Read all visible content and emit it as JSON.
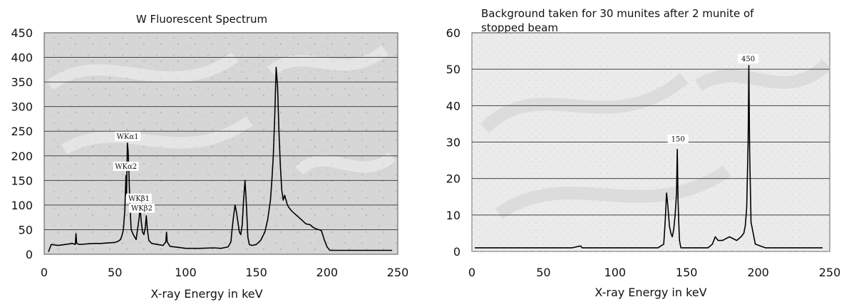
{
  "chart_data": [
    {
      "type": "line",
      "title": "W Fluorescent Spectrum",
      "xlabel": "X-ray Energy in keV",
      "ylabel": "",
      "xlim": [
        0,
        250
      ],
      "ylim": [
        0,
        450
      ],
      "xticks": [
        "0",
        "50",
        "100",
        "150",
        "200",
        "250"
      ],
      "yticks": [
        "0",
        "50",
        "100",
        "150",
        "200",
        "250",
        "300",
        "350",
        "400",
        "450"
      ],
      "grid": "horizontal",
      "background": "#d6d6d6",
      "line_color": "#000000",
      "annotations": [
        {
          "text": "WKα1",
          "x": 59,
          "y": 226
        },
        {
          "text": "WKα2",
          "x": 57.8,
          "y": 165
        },
        {
          "text": "WKβ1",
          "x": 67,
          "y": 100
        },
        {
          "text": "WKβ2",
          "x": 69,
          "y": 80
        }
      ],
      "series": [
        {
          "x": [
            3,
            5,
            10,
            15,
            20,
            22,
            22.5,
            23,
            25,
            30,
            35,
            40,
            45,
            50,
            52,
            54,
            55,
            56,
            57,
            57.8,
            58.2,
            58.8,
            59.3,
            59.8,
            60.5,
            61.5,
            63,
            65,
            66.5,
            67.2,
            67.8,
            68.5,
            69.5,
            70.5,
            71.5,
            72.2,
            73,
            74,
            76,
            80,
            84,
            86,
            86.5,
            87,
            89,
            95,
            100,
            110,
            120,
            125,
            130,
            132,
            133,
            134,
            135,
            136,
            137,
            138,
            139,
            140,
            141,
            142,
            143,
            144,
            145,
            147,
            150,
            153,
            156,
            158,
            160,
            161,
            162,
            163,
            164,
            165,
            166,
            167,
            168,
            169,
            170,
            171,
            172,
            173,
            175,
            178,
            182,
            185,
            188,
            190,
            192,
            194,
            196,
            198,
            200,
            202,
            205,
            210,
            220,
            230,
            240,
            246
          ],
          "y": [
            5,
            20,
            18,
            20,
            22,
            20,
            42,
            22,
            20,
            21,
            22,
            22,
            23,
            24,
            26,
            30,
            38,
            50,
            90,
            160,
            120,
            226,
            210,
            180,
            110,
            50,
            40,
            30,
            60,
            75,
            97,
            70,
            45,
            40,
            55,
            78,
            50,
            28,
            22,
            20,
            18,
            25,
            45,
            25,
            16,
            14,
            12,
            12,
            13,
            12,
            15,
            25,
            55,
            80,
            100,
            85,
            65,
            45,
            40,
            60,
            110,
            150,
            100,
            35,
            20,
            18,
            20,
            28,
            45,
            70,
            110,
            150,
            200,
            280,
            380,
            340,
            250,
            180,
            130,
            110,
            120,
            110,
            100,
            95,
            88,
            80,
            70,
            62,
            60,
            55,
            52,
            50,
            48,
            30,
            15,
            8,
            8,
            8,
            8,
            8,
            8,
            8
          ]
        }
      ]
    },
    {
      "type": "line",
      "title": "Background taken for 30 munites after 2 munite of stopped beam",
      "title_lines": [
        "Background taken for 30 munites after 2 munite of",
        "stopped beam"
      ],
      "xlabel": "X-ray Energy in keV",
      "ylabel": "",
      "xlim": [
        0,
        250
      ],
      "ylim": [
        0,
        60
      ],
      "xticks": [
        "0",
        "50",
        "100",
        "150",
        "200",
        "250"
      ],
      "yticks": [
        "0",
        "10",
        "20",
        "30",
        "40",
        "50",
        "60"
      ],
      "grid": "horizontal",
      "background": "#ebebeb",
      "line_color": "#000000",
      "annotations": [
        {
          "text": "150",
          "x": 144,
          "y": 29
        },
        {
          "text": "450",
          "x": 193,
          "y": 51
        }
      ],
      "series": [
        {
          "x": [
            2,
            10,
            20,
            30,
            40,
            50,
            60,
            70,
            76,
            77,
            80,
            90,
            100,
            110,
            120,
            130,
            134,
            135,
            136,
            137,
            138,
            139,
            140,
            141,
            142,
            143,
            143.5,
            144,
            144.5,
            145,
            146,
            150,
            160,
            165,
            168,
            170,
            172,
            175,
            180,
            185,
            188,
            190,
            191,
            192,
            193,
            193.5,
            194,
            195,
            198,
            205,
            215,
            225,
            235,
            245
          ],
          "y": [
            1,
            1,
            1,
            1,
            1,
            1,
            1,
            1,
            1.5,
            1,
            1,
            1,
            1,
            1,
            1,
            1,
            2,
            8,
            16,
            12,
            7,
            5,
            4,
            6,
            10,
            16,
            28,
            14,
            8,
            3,
            1,
            1,
            1,
            1,
            2,
            4,
            3,
            3,
            4,
            3,
            4,
            5,
            7,
            12,
            30,
            51,
            28,
            8,
            2,
            1,
            1,
            1,
            1,
            1
          ]
        }
      ]
    }
  ]
}
